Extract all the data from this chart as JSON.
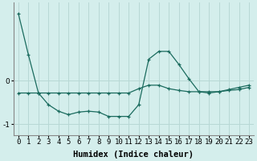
{
  "xlabel": "Humidex (Indice chaleur)",
  "background_color": "#d4eeec",
  "grid_color": "#b8d8d5",
  "line_color": "#1a6b5e",
  "x_values": [
    0,
    1,
    2,
    3,
    4,
    5,
    6,
    7,
    8,
    9,
    10,
    11,
    12,
    13,
    14,
    15,
    16,
    17,
    18,
    19,
    20,
    21,
    22,
    23
  ],
  "line1_y": [
    -0.28,
    -0.28,
    -0.28,
    -0.28,
    -0.28,
    -0.28,
    -0.28,
    -0.28,
    -0.28,
    -0.28,
    -0.28,
    -0.28,
    -0.18,
    -0.1,
    -0.1,
    -0.18,
    -0.22,
    -0.25,
    -0.25,
    -0.25,
    -0.25,
    -0.22,
    -0.2,
    -0.15
  ],
  "line2_y": [
    1.55,
    0.6,
    -0.28,
    -0.55,
    -0.7,
    -0.78,
    -0.72,
    -0.7,
    -0.72,
    -0.82,
    -0.82,
    -0.82,
    -0.55,
    0.5,
    0.68,
    0.68,
    0.38,
    0.05,
    -0.25,
    -0.28,
    -0.25,
    -0.2,
    -0.15,
    -0.1
  ],
  "yticks": [
    0,
    -1
  ],
  "ylim": [
    -1.25,
    1.8
  ],
  "xlim": [
    -0.5,
    23.5
  ],
  "tick_fontsize": 6.5,
  "label_fontsize": 7.5,
  "figwidth": 3.2,
  "figheight": 2.0,
  "dpi": 100
}
